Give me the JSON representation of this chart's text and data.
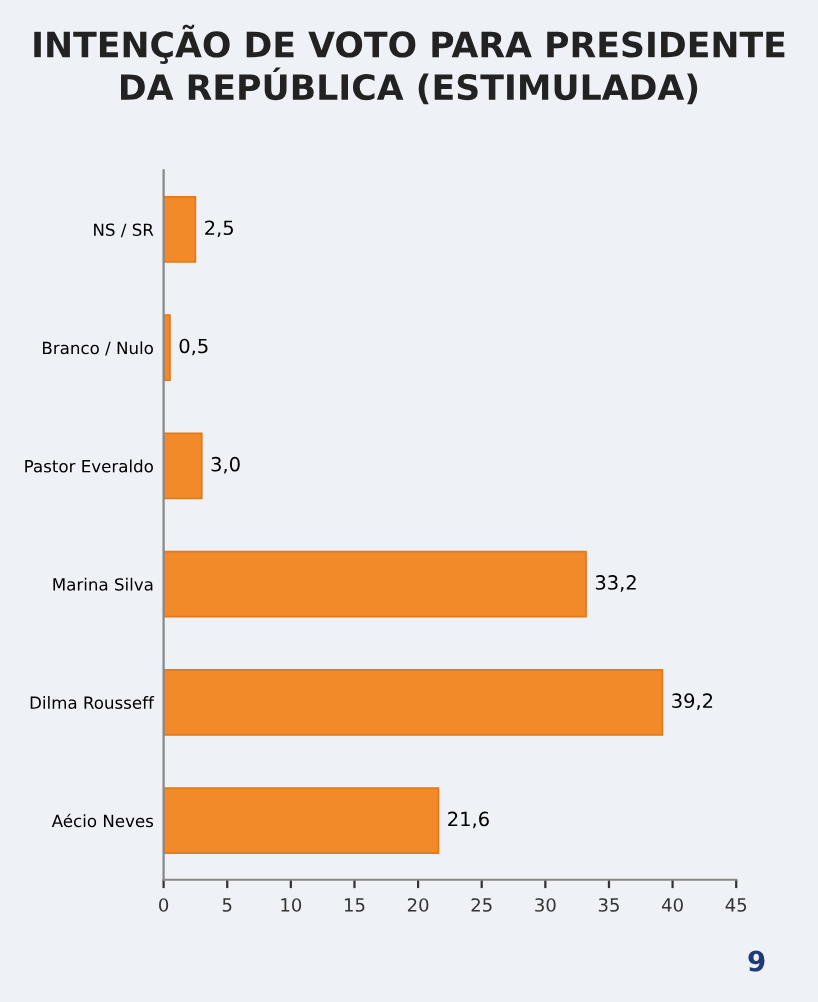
{
  "chart_data": {
    "type": "bar",
    "orientation": "horizontal",
    "title": "INTENÇÃO DE VOTO PARA PRESIDENTE DA REPÚBLICA (ESTIMULADA)",
    "categories": [
      "NS / SR",
      "Branco / Nulo",
      "Pastor Everaldo",
      "Marina Silva",
      "Dilma Rousseff",
      "Aécio Neves"
    ],
    "values": [
      2.5,
      0.5,
      3.0,
      33.2,
      39.2,
      21.6
    ],
    "value_labels": [
      "2,5",
      "0,5",
      "3,0",
      "33,2",
      "39,2",
      "21,6"
    ],
    "color": "#f28a2a",
    "xlim": [
      0,
      45
    ],
    "xticks": [
      0,
      5,
      10,
      15,
      20,
      25,
      30,
      35,
      40,
      45
    ],
    "grid": false,
    "annotations": [
      "9"
    ]
  }
}
